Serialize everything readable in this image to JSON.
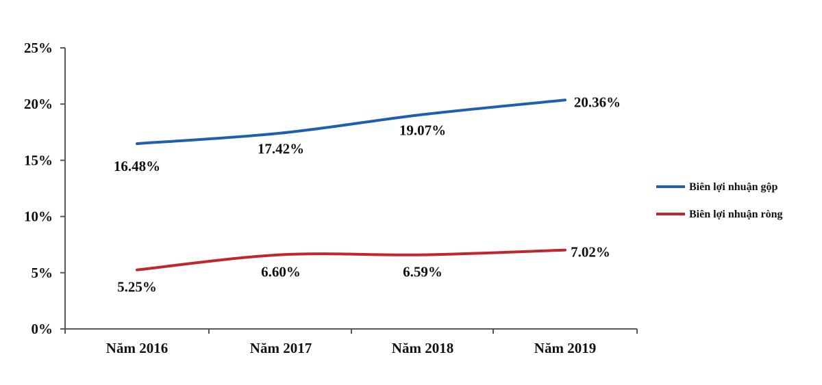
{
  "chart_data": {
    "type": "line",
    "title": "",
    "xlabel": "",
    "ylabel": "",
    "categories": [
      "Năm 2016",
      "Năm 2017",
      "Năm 2018",
      "Năm 2019"
    ],
    "y_ticks": [
      "0%",
      "5%",
      "10%",
      "15%",
      "20%",
      "25%"
    ],
    "ylim": [
      0,
      25
    ],
    "grid": false,
    "legend_position": "right",
    "series": [
      {
        "name": "Biên lợi nhuận gộp",
        "color": "#1f5fae",
        "values": [
          16.48,
          17.42,
          19.07,
          20.36
        ],
        "labels": [
          "16.48%",
          "17.42%",
          "19.07%",
          "20.36%"
        ]
      },
      {
        "name": "Biên lợi nhuận ròng",
        "color": "#c0262d",
        "values": [
          5.25,
          6.6,
          6.59,
          7.02
        ],
        "labels": [
          "5.25%",
          "6.60%",
          "6.59%",
          "7.02%"
        ]
      }
    ]
  }
}
